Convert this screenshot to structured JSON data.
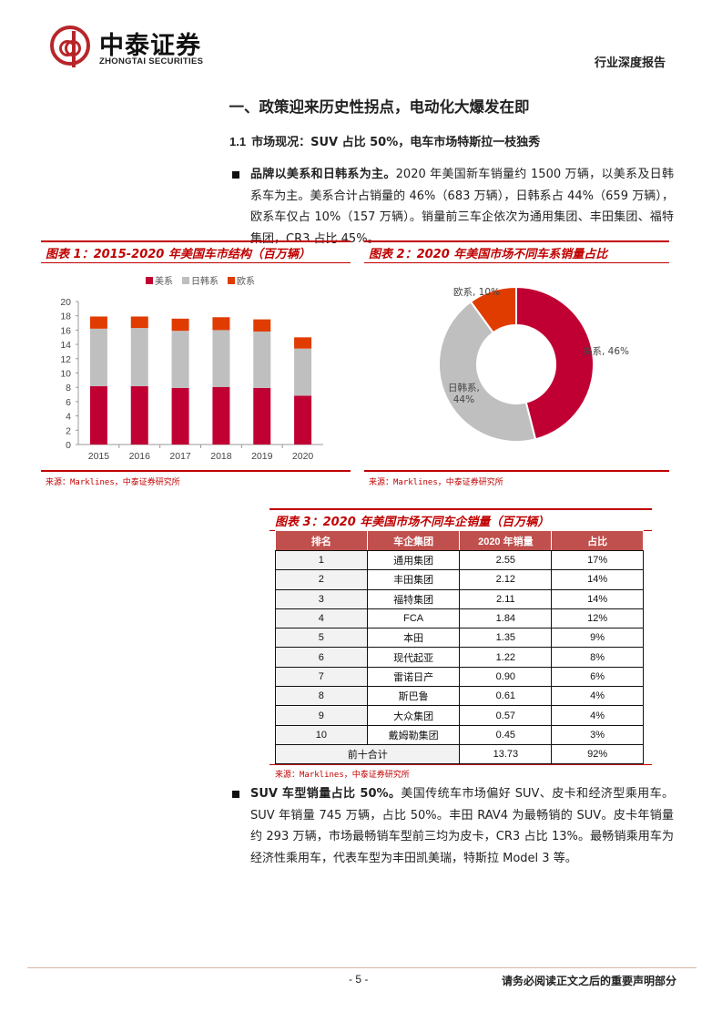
{
  "header": {
    "logo_cn": "中泰证券",
    "logo_en": "ZHONGTAI SECURITIES",
    "report_type": "行业深度报告"
  },
  "section": {
    "title": "一、政策迎来历史性拐点，电动化大爆发在即",
    "subsection_number": "1.1",
    "subsection_title": "市场现况：SUV 占比 50%，电车市场特斯拉一枝独秀"
  },
  "paragraph1": {
    "lead": "品牌以美系和日韩系为主。",
    "body": "2020 年美国新车销量约 1500 万辆，以美系及日韩系车为主。美系合计占销量的 46%（683 万辆），日韩系占 44%（659 万辆），欧系车仅占 10%（157 万辆）。销量前三车企依次为通用集团、丰田集团、福特集团，CR3 占比 45%。"
  },
  "figure1": {
    "title": "图表 1：2015-2020 年美国车市结构（百万辆）",
    "source": "来源：Marklines，中泰证券研究所"
  },
  "figure2": {
    "title": "图表 2：2020 年美国市场不同车系销量占比",
    "source": "来源：Marklines，中泰证券研究所",
    "labels": {
      "eu": "欧系, 10%",
      "us": "美系, 46%",
      "jk_line1": "日韩系,",
      "jk_line2": "44%"
    }
  },
  "chart_data": [
    {
      "type": "bar",
      "stacked": true,
      "title": "2015-2020 年美国车市结构（百万辆）",
      "categories": [
        "2015",
        "2016",
        "2017",
        "2018",
        "2019",
        "2020"
      ],
      "series": [
        {
          "name": "美系",
          "color": "#c00033",
          "values": [
            8.15,
            8.15,
            7.9,
            8.05,
            7.9,
            6.83
          ]
        },
        {
          "name": "日韩系",
          "color": "#bfbfbf",
          "values": [
            8.05,
            8.15,
            8.0,
            7.95,
            7.9,
            6.59
          ]
        },
        {
          "name": "欧系",
          "color": "#e03c00",
          "values": [
            1.7,
            1.6,
            1.7,
            1.8,
            1.7,
            1.57
          ]
        }
      ],
      "yticks": [
        "0",
        "2",
        "4",
        "6",
        "8",
        "10",
        "12",
        "14",
        "16",
        "18",
        "20"
      ],
      "ylim": [
        0,
        20
      ],
      "xlabel": "",
      "ylabel": "",
      "legend_position": "top"
    },
    {
      "type": "pie",
      "donut": true,
      "title": "2020 年美国市场不同车系销量占比",
      "categories": [
        "美系",
        "日韩系",
        "欧系"
      ],
      "values": [
        46,
        44,
        10
      ],
      "colors": [
        "#c00033",
        "#bfbfbf",
        "#e03c00"
      ],
      "unit": "%"
    },
    {
      "type": "table",
      "title": "2020 年美国市场不同车企销量（百万辆）",
      "columns": [
        "排名",
        "车企集团",
        "2020 年销量",
        "占比"
      ],
      "rows": [
        [
          "1",
          "通用集团",
          "2.55",
          "17%"
        ],
        [
          "2",
          "丰田集团",
          "2.12",
          "14%"
        ],
        [
          "3",
          "福特集团",
          "2.11",
          "14%"
        ],
        [
          "4",
          "FCA",
          "1.84",
          "12%"
        ],
        [
          "5",
          "本田",
          "1.35",
          "9%"
        ],
        [
          "6",
          "现代起亚",
          "1.22",
          "8%"
        ],
        [
          "7",
          "雷诺日产",
          "0.90",
          "6%"
        ],
        [
          "8",
          "斯巴鲁",
          "0.61",
          "4%"
        ],
        [
          "9",
          "大众集团",
          "0.57",
          "4%"
        ],
        [
          "10",
          "戴姆勒集团",
          "0.45",
          "3%"
        ]
      ],
      "total": [
        "前十合计",
        "13.73",
        "92%"
      ]
    }
  ],
  "figure3": {
    "title": "图表 3：2020 年美国市场不同车企销量（百万辆）",
    "source": "来源：Marklines，中泰证券研究所"
  },
  "paragraph2": {
    "lead": "SUV 车型销量占比 50%。",
    "body": "美国传统车市场偏好 SUV、皮卡和经济型乘用车。SUV 年销量 745 万辆，占比 50%。丰田 RAV4 为最畅销的 SUV。皮卡年销量约 293 万辆，市场最畅销车型前三均为皮卡，CR3 占比 13%。最畅销乘用车为经济性乘用车，代表车型为丰田凯美瑞，特斯拉 Model 3 等。"
  },
  "footer": {
    "page_number": "- 5 -",
    "disclaimer": "请务必阅读正文之后的重要声明部分"
  }
}
